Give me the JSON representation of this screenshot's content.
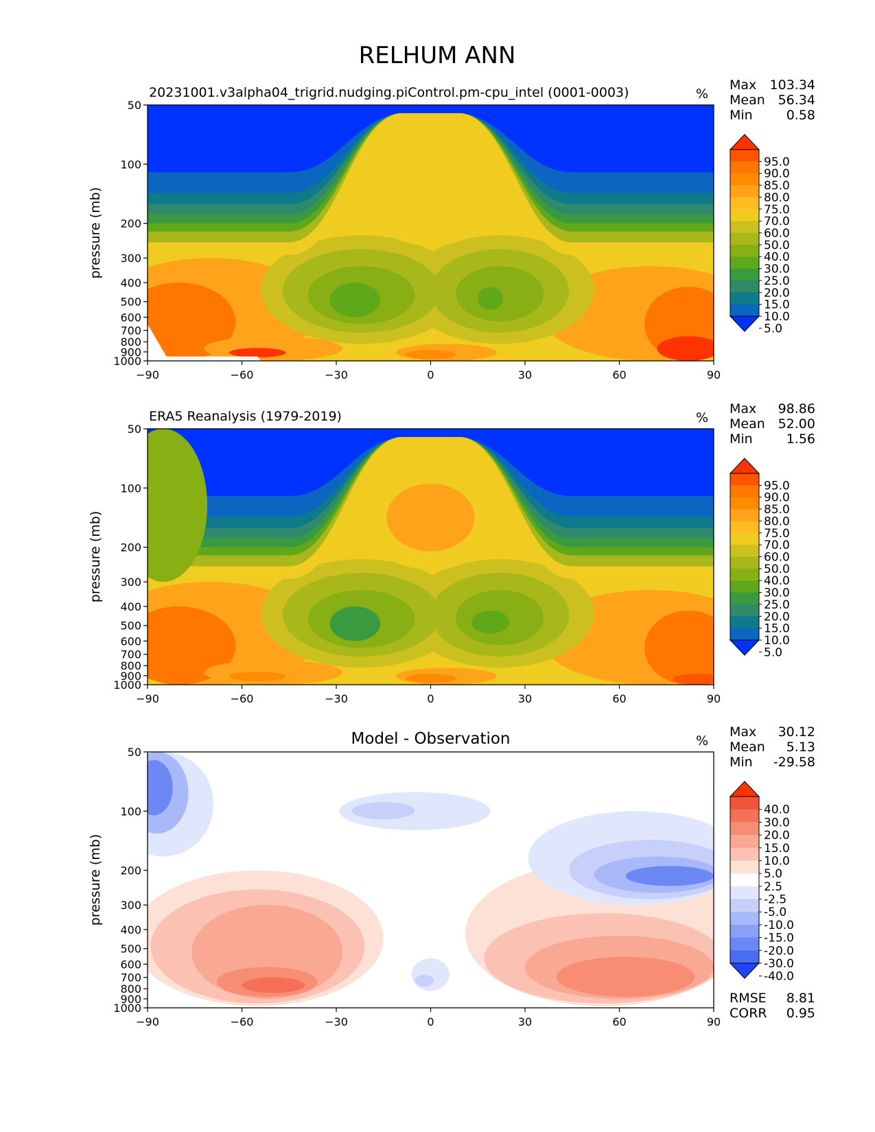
{
  "title": "RELHUM ANN",
  "chart_data": [
    {
      "type": "heatmap",
      "panel": "model",
      "title": "20231001.v3alpha04_trigrid.nudging.piControl.pm-cpu_intel (0001-0003)",
      "units": "%",
      "xlabel": "",
      "ylabel": "pressure (mb)",
      "xlim": [
        -90,
        90
      ],
      "ylim": [
        1000,
        50
      ],
      "x_ticks": [
        "−90",
        "−60",
        "−30",
        "0",
        "30",
        "60",
        "90"
      ],
      "y_ticks": [
        "50",
        "100",
        "200",
        "300",
        "400",
        "500",
        "600",
        "700",
        "800",
        "900",
        "1000"
      ],
      "stats": [
        {
          "label": "Max",
          "value": "103.34"
        },
        {
          "label": "Mean",
          "value": "56.34"
        },
        {
          "label": "Min",
          "value": "0.58"
        }
      ],
      "colorbar": {
        "labels": [
          "95.0",
          "90.0",
          "85.0",
          "80.0",
          "75.0",
          "70.0",
          "60.0",
          "50.0",
          "40.0",
          "30.0",
          "25.0",
          "20.0",
          "15.0",
          "10.0",
          "5.0"
        ],
        "colors": [
          "#ff3300",
          "#ff5500",
          "#ff7700",
          "#ff8c00",
          "#ffa31a",
          "#ffbb22",
          "#f0cc20",
          "#ccc020",
          "#a8b81a",
          "#88b015",
          "#5ea81a",
          "#3a9a40",
          "#2e8a6a",
          "#0f7a8a",
          "#0a66c0",
          "#0033ff"
        ]
      },
      "description_points": [
        {
          "x": -90,
          "p": 850,
          "value": 92
        },
        {
          "x": -55,
          "p": 900,
          "value": 96
        },
        {
          "x": -25,
          "p": 500,
          "value": 28
        },
        {
          "x": 0,
          "p": 150,
          "value": 72
        },
        {
          "x": 0,
          "p": 600,
          "value": 68
        },
        {
          "x": 20,
          "p": 450,
          "value": 35
        },
        {
          "x": 60,
          "p": 120,
          "value": 3
        },
        {
          "x": 85,
          "p": 900,
          "value": 96
        },
        {
          "x": -60,
          "p": 100,
          "value": 3
        }
      ]
    },
    {
      "type": "heatmap",
      "panel": "observation",
      "title": "ERA5 Reanalysis (1979-2019)",
      "units": "%",
      "xlabel": "",
      "ylabel": "pressure (mb)",
      "xlim": [
        -90,
        90
      ],
      "ylim": [
        1000,
        50
      ],
      "x_ticks": [
        "−90",
        "−60",
        "−30",
        "0",
        "30",
        "60",
        "90"
      ],
      "y_ticks": [
        "50",
        "100",
        "200",
        "300",
        "400",
        "500",
        "600",
        "700",
        "800",
        "900",
        "1000"
      ],
      "stats": [
        {
          "label": "Max",
          "value": "98.86"
        },
        {
          "label": "Mean",
          "value": "52.00"
        },
        {
          "label": "Min",
          "value": "1.56"
        }
      ],
      "colorbar": {
        "labels": [
          "95.0",
          "90.0",
          "85.0",
          "80.0",
          "75.0",
          "70.0",
          "60.0",
          "50.0",
          "40.0",
          "30.0",
          "25.0",
          "20.0",
          "15.0",
          "10.0",
          "5.0"
        ],
        "colors": [
          "#ff3300",
          "#ff5500",
          "#ff7700",
          "#ff8c00",
          "#ffa31a",
          "#ffbb22",
          "#f0cc20",
          "#ccc020",
          "#a8b81a",
          "#88b015",
          "#5ea81a",
          "#3a9a40",
          "#2e8a6a",
          "#0f7a8a",
          "#0a66c0",
          "#0033ff"
        ]
      }
    },
    {
      "type": "heatmap",
      "panel": "difference",
      "title": "Model - Observation",
      "units": "%",
      "xlabel": "",
      "ylabel": "pressure (mb)",
      "xlim": [
        -90,
        90
      ],
      "ylim": [
        1000,
        50
      ],
      "x_ticks": [
        "−90",
        "−60",
        "−30",
        "0",
        "30",
        "60",
        "90"
      ],
      "y_ticks": [
        "50",
        "100",
        "200",
        "300",
        "400",
        "500",
        "600",
        "700",
        "800",
        "900",
        "1000"
      ],
      "stats": [
        {
          "label": "Max",
          "value": "30.12"
        },
        {
          "label": "Mean",
          "value": "5.13"
        },
        {
          "label": "Min",
          "value": "-29.58"
        }
      ],
      "metrics": [
        {
          "label": "RMSE",
          "value": "8.81"
        },
        {
          "label": "CORR",
          "value": "0.95"
        }
      ],
      "colorbar": {
        "labels": [
          "40.0",
          "30.0",
          "20.0",
          "15.0",
          "10.0",
          "5.0",
          "2.5",
          "-2.5",
          "-5.0",
          "-10.0",
          "-15.0",
          "-20.0",
          "-30.0",
          "-40.0"
        ],
        "colors": [
          "#ff3300",
          "#f0553a",
          "#f47158",
          "#f78e74",
          "#f9a893",
          "#fbc2b3",
          "#fde0d6",
          "#ffffff",
          "#e0e6fc",
          "#c6d0fa",
          "#a8b8f8",
          "#8aa0f6",
          "#6c88f4",
          "#4a6ef2",
          "#1f44ff"
        ]
      }
    }
  ]
}
